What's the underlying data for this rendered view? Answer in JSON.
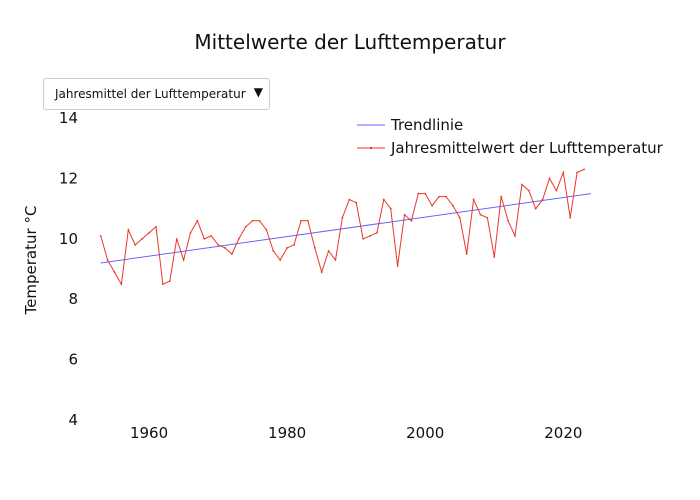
{
  "dropdown": {
    "selected": "Jahresmittel der Lufttemperatur",
    "arrow_icon": "triangle-down-icon"
  },
  "chart_data": {
    "type": "line",
    "title": "Mittelwerte der Lufttemperatur",
    "xlabel": "",
    "ylabel": "Temperatur °C",
    "xlim": [
      1950,
      2034
    ],
    "ylim": [
      4,
      14.6
    ],
    "xticks": [
      1960,
      1980,
      2000,
      2020
    ],
    "yticks": [
      4,
      6,
      8,
      10,
      12,
      14
    ],
    "grid": false,
    "legend_position": "top-right",
    "series": [
      {
        "name": "Trendlinie",
        "color": "#6666ff",
        "x": [
          1953,
          2024
        ],
        "y": [
          9.2,
          11.5
        ]
      },
      {
        "name": "Jahresmittelwert der Lufttemperatur",
        "color": "#e8382b",
        "x": [
          1953,
          1954,
          1955,
          1956,
          1957,
          1958,
          1959,
          1960,
          1961,
          1962,
          1963,
          1964,
          1965,
          1966,
          1967,
          1968,
          1969,
          1970,
          1971,
          1972,
          1973,
          1974,
          1975,
          1976,
          1977,
          1978,
          1979,
          1980,
          1981,
          1982,
          1983,
          1984,
          1985,
          1986,
          1987,
          1988,
          1989,
          1990,
          1991,
          1992,
          1993,
          1994,
          1995,
          1996,
          1997,
          1998,
          1999,
          2000,
          2001,
          2002,
          2003,
          2004,
          2005,
          2006,
          2007,
          2008,
          2009,
          2010,
          2011,
          2012,
          2013,
          2014,
          2015,
          2016,
          2017,
          2018,
          2019,
          2020,
          2021,
          2022,
          2023
        ],
        "y": [
          10.1,
          9.3,
          8.9,
          8.5,
          10.3,
          9.8,
          10.0,
          10.2,
          10.4,
          8.5,
          8.6,
          10.0,
          9.3,
          10.2,
          10.6,
          10.0,
          10.1,
          9.8,
          9.7,
          9.5,
          10.0,
          10.4,
          10.6,
          10.6,
          10.3,
          9.6,
          9.3,
          9.7,
          9.8,
          10.6,
          10.6,
          9.7,
          8.9,
          9.6,
          9.3,
          10.7,
          11.3,
          11.2,
          10.0,
          10.1,
          10.2,
          11.3,
          11.0,
          9.1,
          10.8,
          10.6,
          11.5,
          11.5,
          11.1,
          11.4,
          11.4,
          11.1,
          10.7,
          9.5,
          11.3,
          10.8,
          10.7,
          9.4,
          11.4,
          10.6,
          10.1,
          11.8,
          11.6,
          11.0,
          11.3,
          12.0,
          11.6,
          12.2,
          10.7,
          12.2,
          12.3
        ]
      }
    ]
  }
}
